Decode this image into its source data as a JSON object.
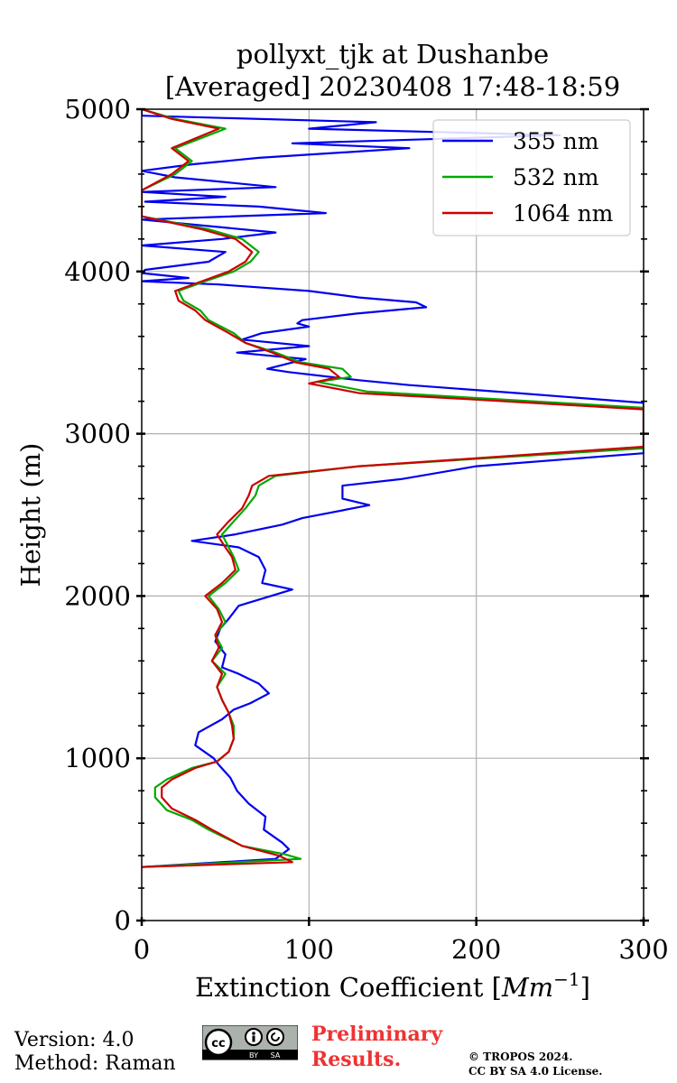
{
  "chart_data": {
    "type": "line",
    "title": [
      "pollyxt_tjk at Dushanbe",
      "[Averaged] 20230408 17:48-18:59"
    ],
    "xlabel": "Extinction Coefficient [",
    "xlabel_unit": "Mm",
    "xlabel_exp": "−1",
    "xlabel_close": "]",
    "ylabel": "Height (m)",
    "xlim": [
      0,
      300
    ],
    "ylim": [
      0,
      5000
    ],
    "xticks": [
      0,
      100,
      200,
      300
    ],
    "yticks": [
      0,
      1000,
      2000,
      3000,
      4000,
      5000
    ],
    "grid": true,
    "legend_position": "top-right",
    "series": [
      {
        "name": "355 nm",
        "color": "#0000ee",
        "points": [
          [
            0,
            330
          ],
          [
            80,
            380
          ],
          [
            88,
            440
          ],
          [
            84,
            480
          ],
          [
            73,
            560
          ],
          [
            74,
            640
          ],
          [
            64,
            720
          ],
          [
            57,
            800
          ],
          [
            53,
            880
          ],
          [
            46,
            960
          ],
          [
            43,
            1000
          ],
          [
            32,
            1080
          ],
          [
            34,
            1160
          ],
          [
            48,
            1240
          ],
          [
            55,
            1300
          ],
          [
            65,
            1340
          ],
          [
            76,
            1400
          ],
          [
            70,
            1460
          ],
          [
            58,
            1520
          ],
          [
            48,
            1560
          ],
          [
            50,
            1640
          ],
          [
            44,
            1720
          ],
          [
            47,
            1800
          ],
          [
            52,
            1860
          ],
          [
            58,
            1940
          ],
          [
            90,
            2040
          ],
          [
            72,
            2080
          ],
          [
            74,
            2160
          ],
          [
            70,
            2240
          ],
          [
            58,
            2300
          ],
          [
            30,
            2340
          ],
          [
            56,
            2380
          ],
          [
            84,
            2440
          ],
          [
            96,
            2480
          ],
          [
            136,
            2560
          ],
          [
            120,
            2600
          ],
          [
            120,
            2680
          ],
          [
            155,
            2720
          ],
          [
            200,
            2800
          ],
          [
            300,
            2880
          ],
          [
            300,
            3190
          ],
          [
            225,
            3250
          ],
          [
            160,
            3300
          ],
          [
            130,
            3330
          ],
          [
            88,
            3380
          ],
          [
            75,
            3400
          ],
          [
            98,
            3460
          ],
          [
            57,
            3500
          ],
          [
            100,
            3540
          ],
          [
            60,
            3580
          ],
          [
            72,
            3620
          ],
          [
            100,
            3660
          ],
          [
            93,
            3680
          ],
          [
            96,
            3700
          ],
          [
            128,
            3740
          ],
          [
            170,
            3780
          ],
          [
            164,
            3810
          ],
          [
            130,
            3840
          ],
          [
            100,
            3880
          ],
          [
            46,
            3920
          ],
          [
            0,
            3940
          ],
          [
            28,
            3960
          ],
          [
            0,
            3990
          ],
          [
            2,
            4010
          ],
          [
            40,
            4060
          ],
          [
            50,
            4120
          ],
          [
            0,
            4160
          ],
          [
            48,
            4200
          ],
          [
            80,
            4240
          ],
          [
            40,
            4280
          ],
          [
            0,
            4320
          ],
          [
            110,
            4360
          ],
          [
            70,
            4400
          ],
          [
            2,
            4430
          ],
          [
            50,
            4460
          ],
          [
            0,
            4490
          ],
          [
            80,
            4520
          ],
          [
            20,
            4580
          ],
          [
            0,
            4620
          ],
          [
            30,
            4660
          ],
          [
            70,
            4700
          ],
          [
            160,
            4760
          ],
          [
            90,
            4790
          ],
          [
            250,
            4840
          ],
          [
            100,
            4880
          ],
          [
            140,
            4920
          ],
          [
            0,
            4960
          ],
          [
            0,
            5000
          ]
        ]
      },
      {
        "name": "532 nm",
        "color": "#00aa00",
        "points": [
          [
            0,
            330
          ],
          [
            95,
            380
          ],
          [
            85,
            410
          ],
          [
            60,
            460
          ],
          [
            40,
            560
          ],
          [
            30,
            620
          ],
          [
            15,
            680
          ],
          [
            8,
            760
          ],
          [
            8,
            820
          ],
          [
            15,
            870
          ],
          [
            30,
            940
          ],
          [
            45,
            980
          ],
          [
            52,
            1040
          ],
          [
            55,
            1120
          ],
          [
            55,
            1200
          ],
          [
            52,
            1280
          ],
          [
            48,
            1360
          ],
          [
            45,
            1440
          ],
          [
            50,
            1520
          ],
          [
            42,
            1600
          ],
          [
            48,
            1680
          ],
          [
            44,
            1760
          ],
          [
            50,
            1840
          ],
          [
            46,
            1920
          ],
          [
            40,
            2000
          ],
          [
            50,
            2080
          ],
          [
            58,
            2160
          ],
          [
            55,
            2240
          ],
          [
            52,
            2300
          ],
          [
            48,
            2380
          ],
          [
            55,
            2460
          ],
          [
            62,
            2540
          ],
          [
            68,
            2620
          ],
          [
            70,
            2680
          ],
          [
            80,
            2740
          ],
          [
            130,
            2800
          ],
          [
            300,
            2910
          ],
          [
            300,
            3160
          ],
          [
            200,
            3220
          ],
          [
            135,
            3260
          ],
          [
            105,
            3320
          ],
          [
            125,
            3350
          ],
          [
            120,
            3400
          ],
          [
            95,
            3440
          ],
          [
            80,
            3500
          ],
          [
            62,
            3560
          ],
          [
            55,
            3620
          ],
          [
            40,
            3700
          ],
          [
            35,
            3760
          ],
          [
            25,
            3820
          ],
          [
            22,
            3880
          ],
          [
            38,
            3940
          ],
          [
            55,
            4000
          ],
          [
            65,
            4060
          ],
          [
            70,
            4120
          ],
          [
            60,
            4200
          ],
          [
            40,
            4260
          ],
          [
            0,
            4340
          ],
          [
            0,
            4500
          ],
          [
            20,
            4600
          ],
          [
            30,
            4680
          ],
          [
            20,
            4760
          ],
          [
            50,
            4880
          ],
          [
            20,
            4940
          ],
          [
            0,
            5000
          ]
        ]
      },
      {
        "name": "1064 nm",
        "color": "#cc0000",
        "points": [
          [
            0,
            330
          ],
          [
            90,
            360
          ],
          [
            82,
            400
          ],
          [
            60,
            460
          ],
          [
            42,
            560
          ],
          [
            32,
            620
          ],
          [
            18,
            690
          ],
          [
            12,
            760
          ],
          [
            12,
            820
          ],
          [
            18,
            870
          ],
          [
            32,
            940
          ],
          [
            45,
            980
          ],
          [
            52,
            1040
          ],
          [
            55,
            1120
          ],
          [
            54,
            1200
          ],
          [
            52,
            1280
          ],
          [
            48,
            1360
          ],
          [
            45,
            1440
          ],
          [
            48,
            1520
          ],
          [
            42,
            1600
          ],
          [
            46,
            1680
          ],
          [
            44,
            1760
          ],
          [
            48,
            1840
          ],
          [
            45,
            1920
          ],
          [
            38,
            2000
          ],
          [
            48,
            2080
          ],
          [
            56,
            2160
          ],
          [
            54,
            2240
          ],
          [
            50,
            2300
          ],
          [
            45,
            2380
          ],
          [
            52,
            2460
          ],
          [
            60,
            2540
          ],
          [
            64,
            2620
          ],
          [
            66,
            2680
          ],
          [
            76,
            2740
          ],
          [
            130,
            2800
          ],
          [
            300,
            2920
          ],
          [
            300,
            3150
          ],
          [
            200,
            3210
          ],
          [
            130,
            3250
          ],
          [
            100,
            3310
          ],
          [
            118,
            3350
          ],
          [
            112,
            3400
          ],
          [
            92,
            3440
          ],
          [
            78,
            3500
          ],
          [
            62,
            3560
          ],
          [
            52,
            3620
          ],
          [
            38,
            3700
          ],
          [
            32,
            3760
          ],
          [
            22,
            3820
          ],
          [
            20,
            3880
          ],
          [
            36,
            3940
          ],
          [
            52,
            4000
          ],
          [
            62,
            4060
          ],
          [
            66,
            4120
          ],
          [
            56,
            4200
          ],
          [
            36,
            4260
          ],
          [
            0,
            4340
          ],
          [
            0,
            4500
          ],
          [
            18,
            4600
          ],
          [
            28,
            4680
          ],
          [
            18,
            4760
          ],
          [
            46,
            4880
          ],
          [
            18,
            4940
          ],
          [
            0,
            5000
          ]
        ]
      }
    ]
  },
  "footer": {
    "version": "Version: 4.0",
    "method": "Method: Raman",
    "preliminary_1": "Preliminary",
    "preliminary_2": "Results.",
    "copyright_1": "© TROPOS 2024.",
    "copyright_2": "CC BY SA 4.0 License.",
    "cc_by": "BY",
    "cc_sa": "SA"
  }
}
